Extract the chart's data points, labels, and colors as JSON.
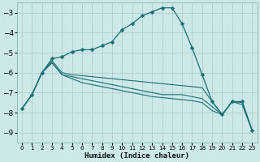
{
  "background_color": "#cde8e8",
  "grid_color": "#aecece",
  "line_color": "#1a7070",
  "xlabel": "Humidex (Indice chaleur)",
  "xlim": [
    -0.5,
    23.5
  ],
  "ylim": [
    -9.5,
    -2.5
  ],
  "yticks": [
    -9,
    -8,
    -7,
    -6,
    -5,
    -4,
    -3
  ],
  "xticks": [
    0,
    1,
    2,
    3,
    4,
    5,
    6,
    7,
    8,
    9,
    10,
    11,
    12,
    13,
    14,
    15,
    16,
    17,
    18,
    19,
    20,
    21,
    22,
    23
  ],
  "line_with_markers": {
    "x": [
      0,
      1,
      2,
      3,
      4,
      5,
      6,
      7,
      8,
      9,
      10,
      11,
      12,
      13,
      14,
      15,
      16,
      17,
      18,
      19,
      20,
      21,
      22,
      23
    ],
    "y": [
      -7.8,
      -7.1,
      -6.0,
      -5.3,
      -5.2,
      -4.95,
      -4.85,
      -4.85,
      -4.65,
      -4.45,
      -3.85,
      -3.55,
      -3.15,
      -2.95,
      -2.75,
      -2.75,
      -3.55,
      -4.75,
      -6.1,
      -7.45,
      -8.1,
      -7.45,
      -7.45,
      -8.9
    ]
  },
  "smooth_lines": [
    {
      "x": [
        0,
        1,
        2,
        3,
        4,
        5,
        6,
        7,
        8,
        9,
        10,
        11,
        12,
        13,
        14,
        15,
        16,
        17,
        18,
        19,
        20,
        21,
        22,
        23
      ],
      "y": [
        -7.8,
        -7.1,
        -6.0,
        -5.4,
        -6.0,
        -6.1,
        -6.15,
        -6.2,
        -6.25,
        -6.3,
        -6.35,
        -6.4,
        -6.45,
        -6.5,
        -6.55,
        -6.6,
        -6.65,
        -6.7,
        -6.75,
        -7.45,
        -8.1,
        -7.45,
        -7.45,
        -8.9
      ]
    },
    {
      "x": [
        0,
        1,
        2,
        3,
        4,
        5,
        6,
        7,
        8,
        9,
        10,
        11,
        12,
        13,
        14,
        15,
        16,
        17,
        18,
        19,
        20,
        21,
        22,
        23
      ],
      "y": [
        -7.8,
        -7.1,
        -6.0,
        -5.5,
        -6.1,
        -6.2,
        -6.3,
        -6.4,
        -6.5,
        -6.6,
        -6.7,
        -6.8,
        -6.9,
        -7.0,
        -7.1,
        -7.1,
        -7.1,
        -7.2,
        -7.3,
        -7.7,
        -8.1,
        -7.45,
        -7.5,
        -8.9
      ]
    },
    {
      "x": [
        0,
        1,
        2,
        3,
        4,
        5,
        6,
        7,
        8,
        9,
        10,
        11,
        12,
        13,
        14,
        15,
        16,
        17,
        18,
        19,
        20,
        21,
        22,
        23
      ],
      "y": [
        -7.8,
        -7.1,
        -6.0,
        -5.5,
        -6.1,
        -6.3,
        -6.5,
        -6.6,
        -6.7,
        -6.8,
        -6.9,
        -7.0,
        -7.1,
        -7.2,
        -7.25,
        -7.3,
        -7.35,
        -7.4,
        -7.5,
        -7.9,
        -8.1,
        -7.45,
        -7.6,
        -8.9
      ]
    }
  ]
}
